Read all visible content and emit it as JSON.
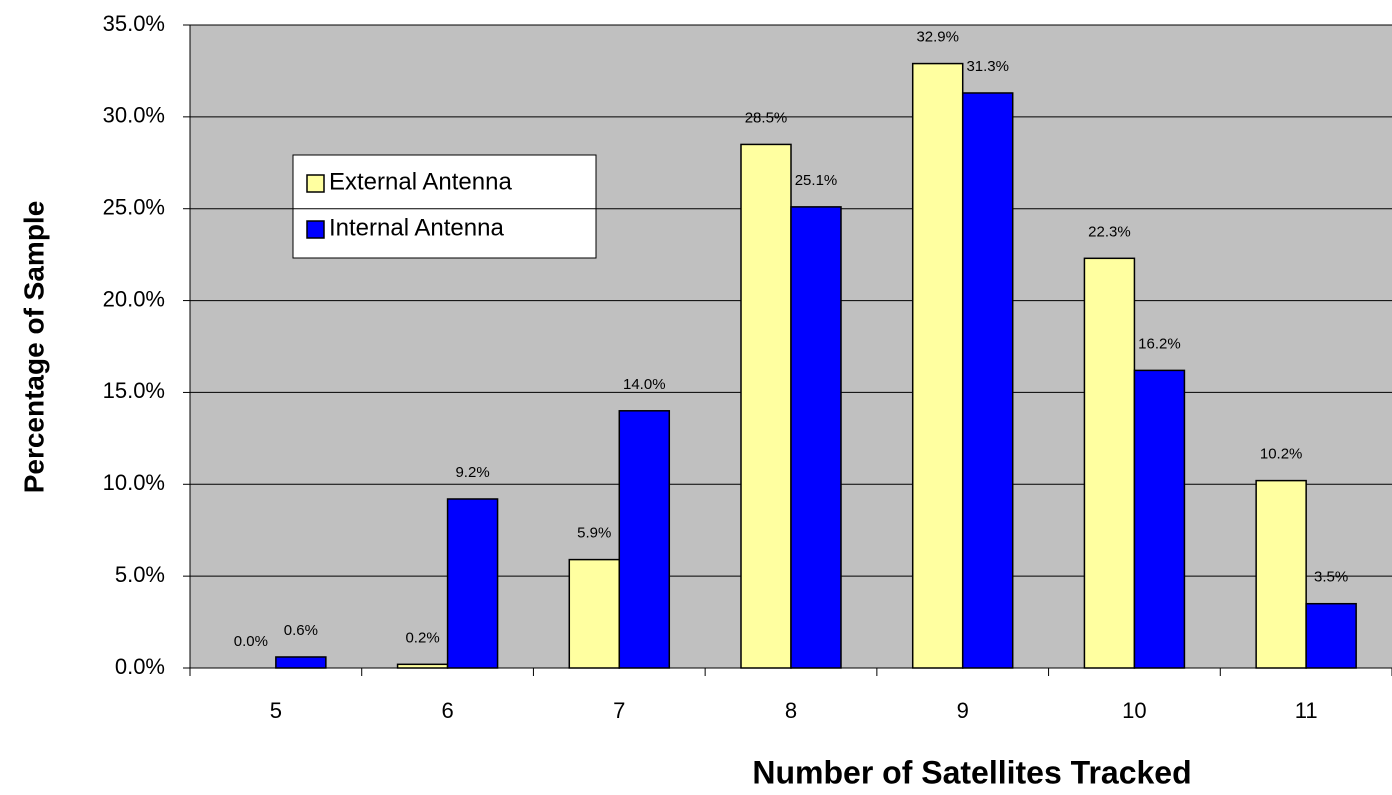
{
  "chart_data": {
    "type": "bar",
    "x_label": "Number of Satellites Tracked",
    "y_label": "Percentage of Sample",
    "categories": [
      "5",
      "6",
      "7",
      "8",
      "9",
      "10",
      "11"
    ],
    "series": [
      {
        "name": "External Antenna",
        "color": "#ffffa0",
        "values": [
          0.0,
          0.2,
          5.9,
          28.5,
          32.9,
          22.3,
          10.2
        ],
        "value_labels": [
          "0.0%",
          "0.2%",
          "5.9%",
          "28.5%",
          "32.9%",
          "22.3%",
          "10.2%"
        ]
      },
      {
        "name": "Internal Antenna",
        "color": "#0000ff",
        "values": [
          0.6,
          9.2,
          14.0,
          25.1,
          31.3,
          16.2,
          3.5
        ],
        "value_labels": [
          "0.6%",
          "9.2%",
          "14.0%",
          "25.1%",
          "31.3%",
          "16.2%",
          "3.5%"
        ]
      }
    ],
    "ylim": [
      0,
      35
    ],
    "yticks": [
      {
        "value": 0,
        "label": "0.0%"
      },
      {
        "value": 5,
        "label": "5.0%"
      },
      {
        "value": 10,
        "label": "10.0%"
      },
      {
        "value": 15,
        "label": "15.0%"
      },
      {
        "value": 20,
        "label": "20.0%"
      },
      {
        "value": 25,
        "label": "25.0%"
      },
      {
        "value": 30,
        "label": "30.0%"
      },
      {
        "value": 35,
        "label": "35.0%"
      }
    ],
    "grid": true
  }
}
